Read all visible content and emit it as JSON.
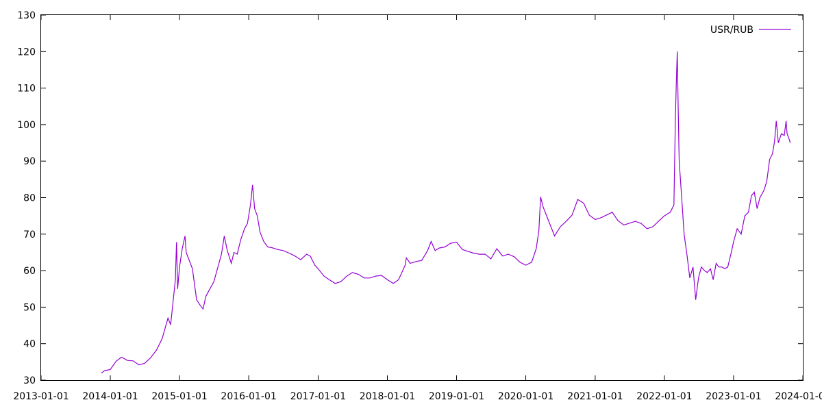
{
  "chart_data": {
    "type": "line",
    "title": "",
    "xlabel": "",
    "ylabel": "",
    "xlim": [
      "2013-01-01",
      "2024-01-01"
    ],
    "ylim": [
      30,
      130
    ],
    "grid": false,
    "legend": "top-right",
    "x_ticks": [
      "2013-01-01",
      "2014-01-01",
      "2015-01-01",
      "2016-01-01",
      "2017-01-01",
      "2018-01-01",
      "2019-01-01",
      "2020-01-01",
      "2021-01-01",
      "2022-01-01",
      "2023-01-01",
      "2024-01-01"
    ],
    "y_ticks": [
      30,
      40,
      50,
      60,
      70,
      80,
      90,
      100,
      110,
      120,
      130
    ],
    "series": [
      {
        "name": "USR/RUB",
        "color": "#9400d3",
        "x": [
          "2013-11-15",
          "2013-12-01",
          "2014-01-01",
          "2014-02-01",
          "2014-03-01",
          "2014-04-01",
          "2014-05-01",
          "2014-06-01",
          "2014-07-01",
          "2014-08-01",
          "2014-09-01",
          "2014-10-01",
          "2014-11-01",
          "2014-11-15",
          "2014-12-01",
          "2014-12-10",
          "2014-12-16",
          "2014-12-22",
          "2015-01-01",
          "2015-01-15",
          "2015-01-30",
          "2015-02-05",
          "2015-02-20",
          "2015-03-10",
          "2015-04-01",
          "2015-04-20",
          "2015-05-05",
          "2015-05-20",
          "2015-06-10",
          "2015-07-01",
          "2015-07-20",
          "2015-08-10",
          "2015-08-25",
          "2015-09-10",
          "2015-10-01",
          "2015-10-15",
          "2015-11-01",
          "2015-11-20",
          "2015-12-10",
          "2015-12-25",
          "2016-01-10",
          "2016-01-21",
          "2016-02-01",
          "2016-02-15",
          "2016-03-01",
          "2016-03-20",
          "2016-04-10",
          "2016-05-01",
          "2016-06-01",
          "2016-07-01",
          "2016-08-01",
          "2016-09-01",
          "2016-10-01",
          "2016-11-01",
          "2016-11-20",
          "2016-12-15",
          "2017-01-01",
          "2017-02-01",
          "2017-03-01",
          "2017-04-01",
          "2017-05-01",
          "2017-06-01",
          "2017-07-01",
          "2017-08-01",
          "2017-09-01",
          "2017-10-01",
          "2017-11-01",
          "2017-12-01",
          "2018-01-01",
          "2018-02-01",
          "2018-03-01",
          "2018-04-05",
          "2018-04-11",
          "2018-05-01",
          "2018-06-01",
          "2018-07-01",
          "2018-08-01",
          "2018-08-20",
          "2018-09-10",
          "2018-10-01",
          "2018-11-01",
          "2018-12-01",
          "2019-01-01",
          "2019-02-01",
          "2019-03-01",
          "2019-04-01",
          "2019-05-01",
          "2019-06-01",
          "2019-07-01",
          "2019-08-01",
          "2019-09-01",
          "2019-10-01",
          "2019-11-01",
          "2019-12-01",
          "2020-01-01",
          "2020-02-01",
          "2020-02-25",
          "2020-03-10",
          "2020-03-19",
          "2020-04-01",
          "2020-05-01",
          "2020-06-01",
          "2020-07-01",
          "2020-08-01",
          "2020-09-01",
          "2020-10-01",
          "2020-11-01",
          "2020-12-01",
          "2021-01-01",
          "2021-02-01",
          "2021-03-01",
          "2021-04-01",
          "2021-05-01",
          "2021-06-01",
          "2021-07-01",
          "2021-08-01",
          "2021-09-01",
          "2021-10-01",
          "2021-11-01",
          "2021-12-01",
          "2022-01-01",
          "2022-02-01",
          "2022-02-20",
          "2022-02-28",
          "2022-03-05",
          "2022-03-10",
          "2022-03-15",
          "2022-03-20",
          "2022-04-01",
          "2022-04-15",
          "2022-05-01",
          "2022-05-15",
          "2022-06-01",
          "2022-06-15",
          "2022-06-30",
          "2022-07-15",
          "2022-08-01",
          "2022-08-15",
          "2022-09-01",
          "2022-09-15",
          "2022-10-01",
          "2022-10-15",
          "2022-11-01",
          "2022-11-15",
          "2022-12-01",
          "2022-12-20",
          "2023-01-01",
          "2023-01-20",
          "2023-02-10",
          "2023-03-01",
          "2023-03-20",
          "2023-04-05",
          "2023-04-20",
          "2023-05-05",
          "2023-05-20",
          "2023-06-10",
          "2023-06-25",
          "2023-07-10",
          "2023-07-25",
          "2023-08-05",
          "2023-08-14",
          "2023-08-25",
          "2023-09-10",
          "2023-09-25",
          "2023-10-05",
          "2023-10-10",
          "2023-10-18",
          "2023-10-27"
        ],
        "y": [
          31.9,
          32.6,
          32.9,
          35.2,
          36.3,
          35.4,
          35.3,
          34.2,
          34.6,
          36.1,
          38.2,
          41.3,
          47.0,
          45.2,
          53.0,
          57.5,
          67.8,
          55.0,
          61.0,
          66.0,
          69.5,
          65.0,
          63.0,
          60.5,
          52.0,
          50.5,
          49.5,
          53.0,
          55.0,
          57.0,
          60.5,
          64.5,
          69.5,
          65.5,
          62.0,
          65.0,
          64.5,
          68.5,
          71.5,
          72.9,
          78.0,
          83.5,
          77.0,
          75.0,
          70.5,
          68.0,
          66.5,
          66.3,
          65.8,
          65.5,
          64.8,
          64.0,
          63.0,
          64.5,
          64.0,
          61.5,
          60.5,
          58.5,
          57.5,
          56.5,
          57.0,
          58.5,
          59.5,
          59.0,
          58.0,
          58.0,
          58.5,
          58.7,
          57.5,
          56.5,
          57.5,
          61.5,
          63.5,
          62.0,
          62.5,
          62.8,
          65.5,
          68.0,
          65.5,
          66.2,
          66.5,
          67.5,
          67.8,
          65.8,
          65.3,
          64.8,
          64.5,
          64.5,
          63.2,
          66.0,
          64.0,
          64.5,
          63.8,
          62.3,
          61.5,
          62.3,
          66.0,
          71.0,
          80.2,
          77.5,
          73.5,
          69.5,
          72.0,
          73.5,
          75.2,
          79.5,
          78.5,
          75.2,
          74.0,
          74.5,
          75.2,
          76.0,
          73.7,
          72.5,
          73.0,
          73.5,
          72.9,
          71.5,
          72.0,
          73.5,
          75.0,
          76.0,
          78.0,
          102.0,
          112.0,
          120.0,
          104.0,
          90.0,
          81.0,
          70.0,
          64.0,
          58.0,
          61.0,
          52.0,
          58.0,
          61.0,
          60.0,
          59.5,
          60.5,
          57.5,
          62.0,
          61.0,
          61.0,
          60.5,
          61.0,
          65.0,
          68.0,
          71.5,
          70.0,
          75.0,
          76.0,
          80.5,
          81.5,
          77.0,
          80.0,
          82.0,
          84.5,
          90.5,
          92.0,
          95.5,
          101.0,
          95.0,
          97.5,
          97.0,
          101.0,
          97.5,
          96.5,
          95.0
        ]
      }
    ]
  }
}
